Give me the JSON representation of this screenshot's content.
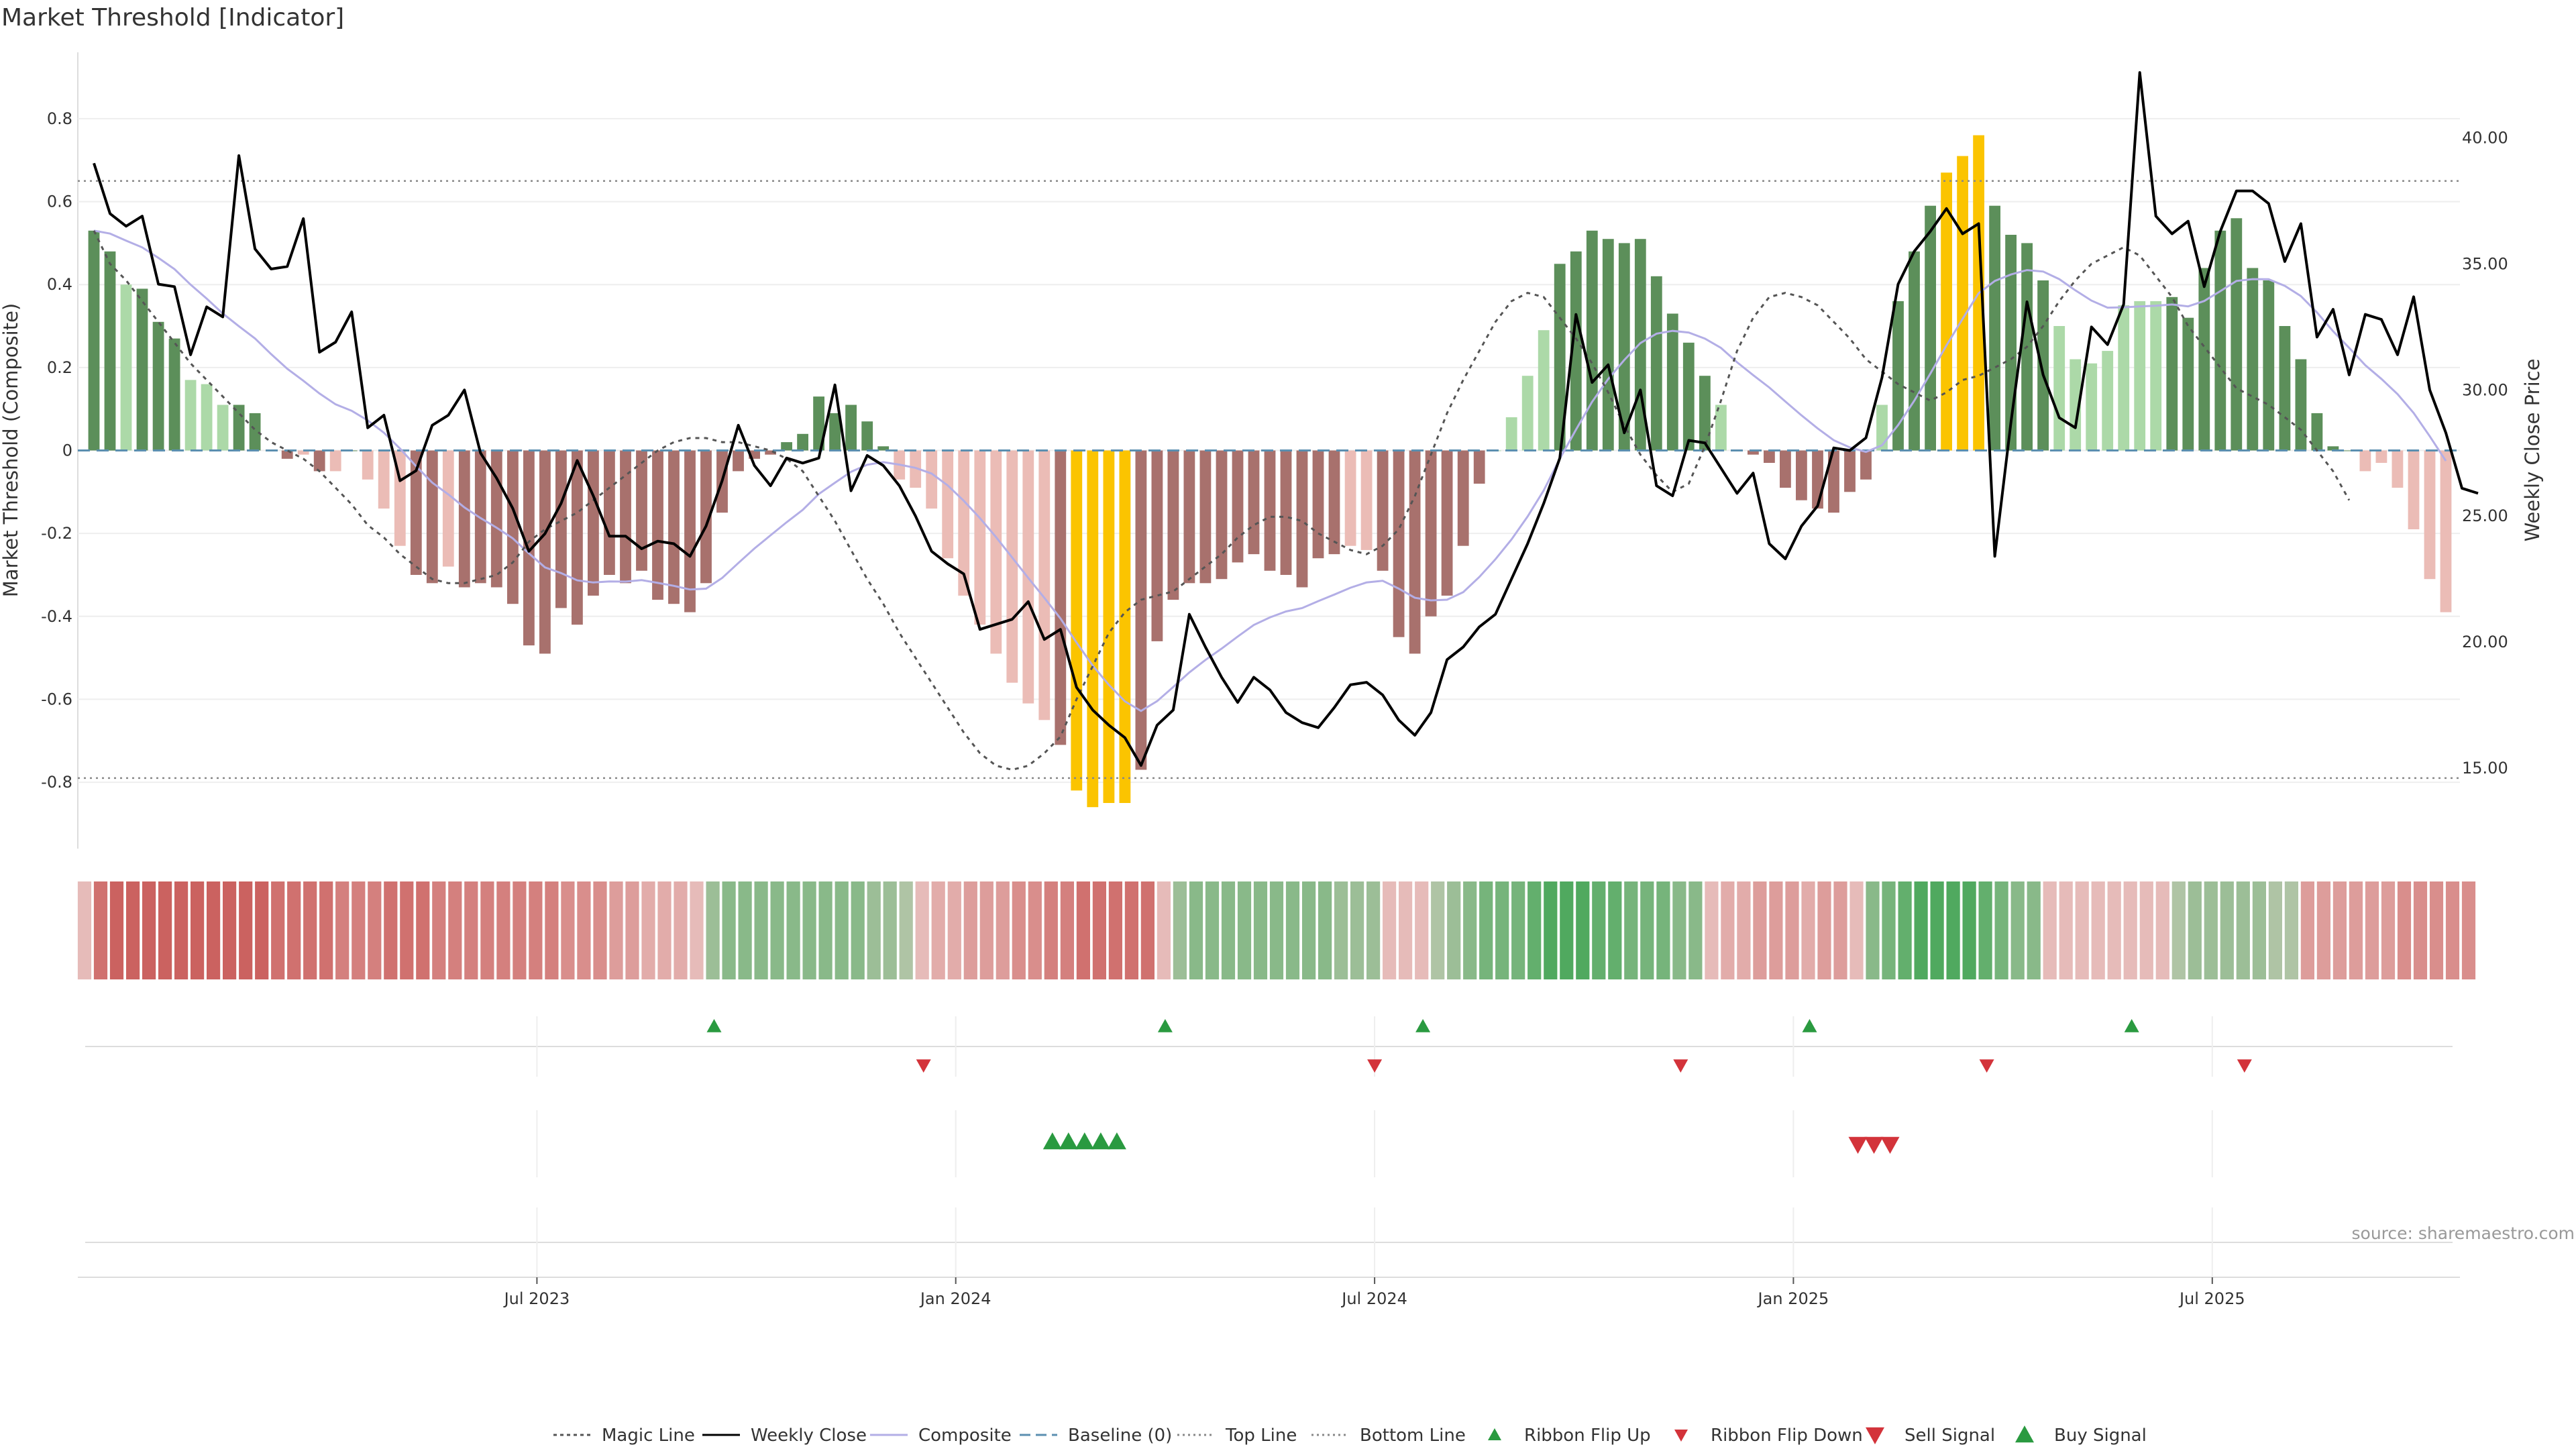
{
  "chart_data": {
    "type": "bar",
    "title": "Market Threshold [Indicator]",
    "ylabel": "Market Threshold (Composite)",
    "y2label": "Weekly Close Price",
    "ylim": [
      -0.96,
      0.96
    ],
    "y2lim": [
      11.8,
      43.4
    ],
    "yticks": [
      0.8,
      0.6,
      0.4,
      0.2,
      0,
      -0.2,
      -0.4,
      -0.6,
      -0.8
    ],
    "ytick_labels": [
      "0.8",
      "0.6",
      "0.4",
      "0.2",
      "0",
      "-0.2",
      "-0.4",
      "-0.6",
      "-0.8"
    ],
    "y2ticks": [
      40,
      35,
      30,
      25,
      20,
      15
    ],
    "y2tick_labels": [
      "40.00",
      "35.00",
      "30.00",
      "25.00",
      "20.00",
      "15.00"
    ],
    "xticks": [
      {
        "label": "Jul 2023",
        "week": 28
      },
      {
        "label": "Jan 2024",
        "week": 54
      },
      {
        "label": "Jul 2024",
        "week": 80
      },
      {
        "label": "Jan 2025",
        "week": 106
      },
      {
        "label": "Jul 2025",
        "week": 132
      }
    ],
    "top_line": 0.65,
    "bottom_line": -0.79,
    "composite": [
      0.53,
      0.48,
      0.4,
      0.39,
      0.31,
      0.27,
      0.17,
      0.16,
      0.11,
      0.11,
      0.09,
      0.0,
      -0.02,
      -0.01,
      -0.05,
      -0.05,
      0.0,
      -0.07,
      -0.14,
      -0.23,
      -0.3,
      -0.32,
      -0.28,
      -0.33,
      -0.32,
      -0.33,
      -0.37,
      -0.47,
      -0.49,
      -0.38,
      -0.42,
      -0.35,
      -0.3,
      -0.32,
      -0.29,
      -0.36,
      -0.37,
      -0.39,
      -0.32,
      -0.15,
      -0.05,
      -0.02,
      -0.01,
      0.02,
      0.04,
      0.13,
      0.09,
      0.11,
      0.07,
      0.01,
      -0.07,
      -0.09,
      -0.14,
      -0.26,
      -0.35,
      -0.42,
      -0.49,
      -0.56,
      -0.61,
      -0.65,
      -0.71,
      -0.82,
      -0.86,
      -0.85,
      -0.85,
      -0.77,
      -0.46,
      -0.36,
      -0.32,
      -0.32,
      -0.31,
      -0.27,
      -0.25,
      -0.29,
      -0.3,
      -0.33,
      -0.26,
      -0.25,
      -0.23,
      -0.24,
      -0.29,
      -0.45,
      -0.49,
      -0.4,
      -0.35,
      -0.23,
      -0.08,
      0.0,
      0.08,
      0.18,
      0.29,
      0.45,
      0.48,
      0.53,
      0.51,
      0.5,
      0.51,
      0.42,
      0.33,
      0.26,
      0.18,
      0.11,
      0.0,
      -0.01,
      -0.03,
      -0.09,
      -0.12,
      -0.14,
      -0.15,
      -0.1,
      -0.07,
      0.11,
      0.36,
      0.48,
      0.59,
      0.67,
      0.71,
      0.76,
      0.59,
      0.52,
      0.5,
      0.41,
      0.3,
      0.22,
      0.21,
      0.24,
      0.35,
      0.36,
      0.36,
      0.37,
      0.32,
      0.44,
      0.53,
      0.56,
      0.44,
      0.41,
      0.3,
      0.22,
      0.09,
      0.01,
      0.0,
      -0.05,
      -0.03,
      -0.09,
      -0.19,
      -0.31,
      -0.39
    ],
    "magic_line": [
      0.53,
      0.45,
      0.41,
      0.36,
      0.31,
      0.26,
      0.21,
      0.17,
      0.13,
      0.09,
      0.05,
      0.02,
      0.0,
      -0.02,
      -0.05,
      -0.09,
      -0.13,
      -0.18,
      -0.21,
      -0.25,
      -0.28,
      -0.31,
      -0.32,
      -0.32,
      -0.31,
      -0.3,
      -0.27,
      -0.22,
      -0.19,
      -0.17,
      -0.15,
      -0.12,
      -0.09,
      -0.06,
      -0.03,
      0.0,
      0.02,
      0.03,
      0.03,
      0.02,
      0.02,
      0.01,
      0.0,
      -0.02,
      -0.05,
      -0.11,
      -0.17,
      -0.24,
      -0.31,
      -0.37,
      -0.44,
      -0.5,
      -0.56,
      -0.62,
      -0.68,
      -0.73,
      -0.76,
      -0.77,
      -0.76,
      -0.73,
      -0.69,
      -0.6,
      -0.52,
      -0.44,
      -0.39,
      -0.36,
      -0.35,
      -0.34,
      -0.31,
      -0.28,
      -0.25,
      -0.21,
      -0.18,
      -0.16,
      -0.16,
      -0.17,
      -0.2,
      -0.22,
      -0.24,
      -0.25,
      -0.23,
      -0.19,
      -0.11,
      -0.01,
      0.09,
      0.17,
      0.24,
      0.31,
      0.36,
      0.38,
      0.37,
      0.32,
      0.27,
      0.21,
      0.14,
      0.06,
      -0.01,
      -0.06,
      -0.1,
      -0.08,
      0.01,
      0.12,
      0.24,
      0.32,
      0.37,
      0.38,
      0.37,
      0.35,
      0.31,
      0.27,
      0.22,
      0.19,
      0.16,
      0.14,
      0.12,
      0.14,
      0.17,
      0.18,
      0.2,
      0.22,
      0.25,
      0.3,
      0.36,
      0.41,
      0.45,
      0.47,
      0.49,
      0.47,
      0.42,
      0.37,
      0.3,
      0.25,
      0.2,
      0.15,
      0.13,
      0.11,
      0.08,
      0.05,
      0.0,
      -0.05,
      -0.12
    ],
    "weekly_close": [
      39.0,
      37.0,
      36.5,
      36.9,
      34.2,
      34.1,
      31.4,
      33.3,
      32.9,
      39.3,
      35.6,
      34.8,
      34.9,
      36.8,
      31.5,
      31.9,
      33.1,
      28.5,
      29.0,
      26.4,
      26.8,
      28.6,
      29.0,
      30.0,
      27.5,
      26.5,
      25.3,
      23.6,
      24.3,
      25.5,
      27.2,
      25.8,
      24.2,
      24.2,
      23.7,
      24.0,
      23.9,
      23.4,
      24.6,
      26.4,
      28.6,
      27.0,
      26.2,
      27.3,
      27.1,
      27.3,
      30.2,
      26.0,
      27.4,
      27.0,
      26.2,
      25.0,
      23.6,
      23.1,
      22.7,
      20.5,
      20.7,
      20.9,
      21.6,
      20.1,
      20.5,
      18.2,
      17.3,
      16.7,
      16.2,
      15.1,
      16.7,
      17.3,
      21.1,
      19.8,
      18.6,
      17.6,
      18.6,
      18.1,
      17.2,
      16.8,
      16.6,
      17.4,
      18.3,
      18.4,
      17.9,
      16.9,
      16.3,
      17.2,
      19.3,
      19.8,
      20.6,
      21.1,
      22.5,
      23.9,
      25.5,
      27.3,
      33.0,
      30.3,
      31.0,
      28.3,
      30.0,
      26.2,
      25.8,
      28.0,
      27.9,
      26.9,
      25.9,
      26.7,
      23.9,
      23.3,
      24.6,
      25.4,
      27.7,
      27.6,
      28.1,
      30.5,
      34.2,
      35.5,
      36.3,
      37.2,
      36.2,
      36.6,
      23.4,
      28.7,
      33.5,
      30.6,
      28.9,
      28.5,
      32.5,
      31.8,
      33.4,
      42.6,
      36.9,
      36.2,
      36.7,
      34.1,
      36.3,
      37.9,
      37.9,
      37.4,
      35.1,
      36.6,
      32.1,
      33.2,
      30.6,
      33.0,
      32.8,
      31.4,
      33.7,
      30.0,
      28.3,
      26.1,
      25.9
    ],
    "ribbon": [
      -1,
      -6,
      -7,
      -7,
      -7,
      -7,
      -7,
      -7,
      -7,
      -7,
      -7,
      -7,
      -6,
      -6,
      -6,
      -6,
      -5,
      -5,
      -5,
      -6,
      -6,
      -6,
      -5,
      -5,
      -5,
      -5,
      -5,
      -5,
      -5,
      -5,
      -4,
      -4,
      -4,
      -3,
      -3,
      -2,
      -2,
      -2,
      -1,
      2,
      3,
      3,
      3,
      3,
      3,
      3,
      3,
      3,
      3,
      2,
      2,
      1,
      -1,
      -2,
      -2,
      -3,
      -3,
      -3,
      -4,
      -4,
      -5,
      -5,
      -6,
      -6,
      -6,
      -6,
      -6,
      -1,
      2,
      3,
      3,
      3,
      3,
      3,
      3,
      3,
      3,
      3,
      2,
      2,
      2,
      -1,
      -1,
      -1,
      1,
      2,
      3,
      4,
      4,
      4,
      5,
      6,
      6,
      6,
      5,
      5,
      4,
      4,
      4,
      3,
      3,
      -1,
      -2,
      -2,
      -3,
      -3,
      -3,
      -2,
      -3,
      -3,
      -1,
      3,
      4,
      5,
      6,
      6,
      6,
      6,
      5,
      4,
      3,
      3,
      -1,
      -1,
      -1,
      -1,
      -1,
      -1,
      -1,
      -1,
      1,
      2,
      2,
      2,
      2,
      2,
      1,
      1,
      -3,
      -3,
      -3,
      -3,
      -3,
      -3,
      -4,
      -4,
      -4,
      -4,
      -4
    ],
    "ribbon_flip_up_weeks": [
      39,
      67,
      83,
      107,
      127
    ],
    "ribbon_flip_down_weeks": [
      52,
      80,
      99,
      118,
      134
    ],
    "buy_signal_weeks": [
      60,
      61,
      62,
      63,
      64
    ],
    "sell_signal_weeks": [
      110,
      111,
      112
    ],
    "legend": [
      "Magic Line",
      "Weekly Close",
      "Composite",
      "Baseline (0)",
      "Top Line",
      "Bottom Line",
      "Ribbon Flip Up",
      "Ribbon Flip Down",
      "Sell Signal",
      "Buy Signal"
    ],
    "source": "source: sharemaestro.com"
  },
  "colors": {
    "bar_light_green": "#acd9a8",
    "bar_dark_green": "#5c8f5a",
    "bar_light_red": "#ebbcb6",
    "bar_dark_red": "#a8716d",
    "bar_extreme": "#fbc400",
    "weekly_close": "#000000",
    "composite": "#b3aee6",
    "magic_line": "#555555",
    "baseline": "#5b8fb0",
    "threshold_lines": "#888888",
    "flip_up": "#2a9a40",
    "flip_down": "#d3333a",
    "ribbon_green": "#3da451",
    "ribbon_red": "#cb6260"
  }
}
